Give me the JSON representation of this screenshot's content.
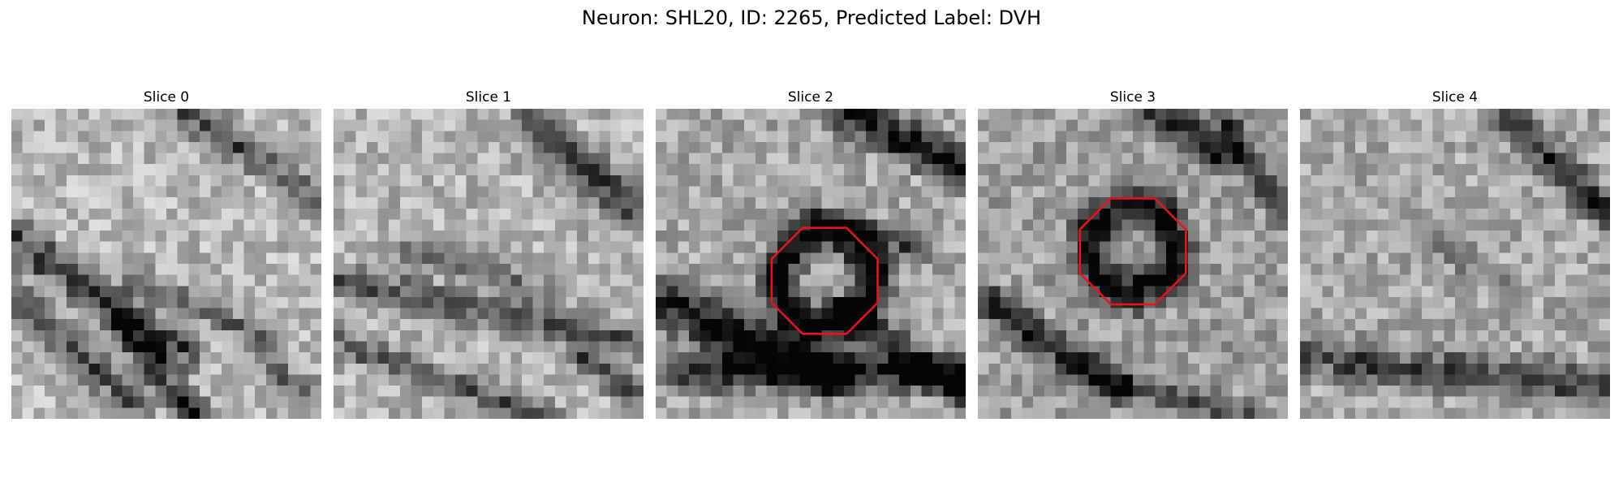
{
  "figure": {
    "title": "Neuron: SHL20, ID: 2265, Predicted Label: DVH",
    "roi_color": "#e8141c",
    "panels": [
      {
        "title": "Slice 0",
        "has_roi": false
      },
      {
        "title": "Slice 1",
        "has_roi": false
      },
      {
        "title": "Slice 2",
        "has_roi": true
      },
      {
        "title": "Slice 3",
        "has_roi": true
      },
      {
        "title": "Slice 4",
        "has_roi": false
      }
    ]
  }
}
